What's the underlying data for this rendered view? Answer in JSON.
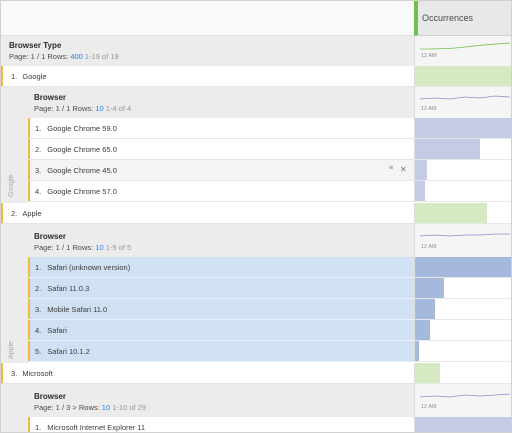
{
  "header": {
    "metric": "Occurrences"
  },
  "root": {
    "title": "Browser Type",
    "page": "Page: 1 / 1",
    "rows_prefix": "Rows:",
    "rows_value": "400",
    "range": "1-19 of 19",
    "spark_label": "12 AM"
  },
  "groups": [
    {
      "label": "1.",
      "name": "Google",
      "gutter": "Google",
      "bar": 1.0,
      "breakdown": {
        "title": "Browser",
        "page": "Page: 1 / 1",
        "rows_prefix": "Rows:",
        "rows_value": "10",
        "range": "1-4 of 4",
        "spark_label": "12 AM",
        "items": [
          {
            "num": "1.",
            "name": "Google Chrome 59.0",
            "bar": 1.0
          },
          {
            "num": "2.",
            "name": "Google Chrome 65.0",
            "bar": 0.66
          },
          {
            "num": "3.",
            "name": "Google Chrome 45.0",
            "bar": 0.12
          },
          {
            "num": "4.",
            "name": "Google Chrome 57.0",
            "bar": 0.1
          }
        ]
      }
    },
    {
      "label": "2.",
      "name": "Apple",
      "gutter": "Apple",
      "bar": 0.73,
      "breakdown": {
        "title": "Browser",
        "page": "Page: 1 / 1",
        "rows_prefix": "Rows:",
        "rows_value": "10",
        "range": "1-5 of 5",
        "spark_label": "12 AM",
        "items": [
          {
            "num": "1.",
            "name": "Safari (unknown version)",
            "bar": 1.0
          },
          {
            "num": "2.",
            "name": "Safari 11.0.3",
            "bar": 0.3
          },
          {
            "num": "3.",
            "name": "Mobile Safari 11.0",
            "bar": 0.2
          },
          {
            "num": "4.",
            "name": "Safari",
            "bar": 0.15
          },
          {
            "num": "5.",
            "name": "Safari 10.1.2",
            "bar": 0.04
          }
        ]
      }
    },
    {
      "label": "3.",
      "name": "Microsoft",
      "bar": 0.26,
      "breakdown": {
        "title": "Browser",
        "page": "Page: 1 / 3",
        "rows_prefix": "Rows:",
        "rows_value": "10",
        "range": "1-10 of 29",
        "spark_label": "12 AM",
        "items": [
          {
            "num": "1.",
            "name": "Microsoft Internet Explorer 11",
            "bar": 1.0
          }
        ]
      }
    }
  ],
  "row_controls": {
    "filter": "≡",
    "close": "✕"
  },
  "icons": [
    "filter-icon",
    "close-icon",
    "page-next-icon"
  ],
  "colors": {
    "metric_accent": "#71c04f",
    "row_accent": "#f2b840",
    "rows_link": "#2680eb",
    "bar_green": "#d5e9c3",
    "bar_purple": "#c5cbe4",
    "bar_blue": "#a5b9dc",
    "selected_row": "#cfe1f2"
  }
}
